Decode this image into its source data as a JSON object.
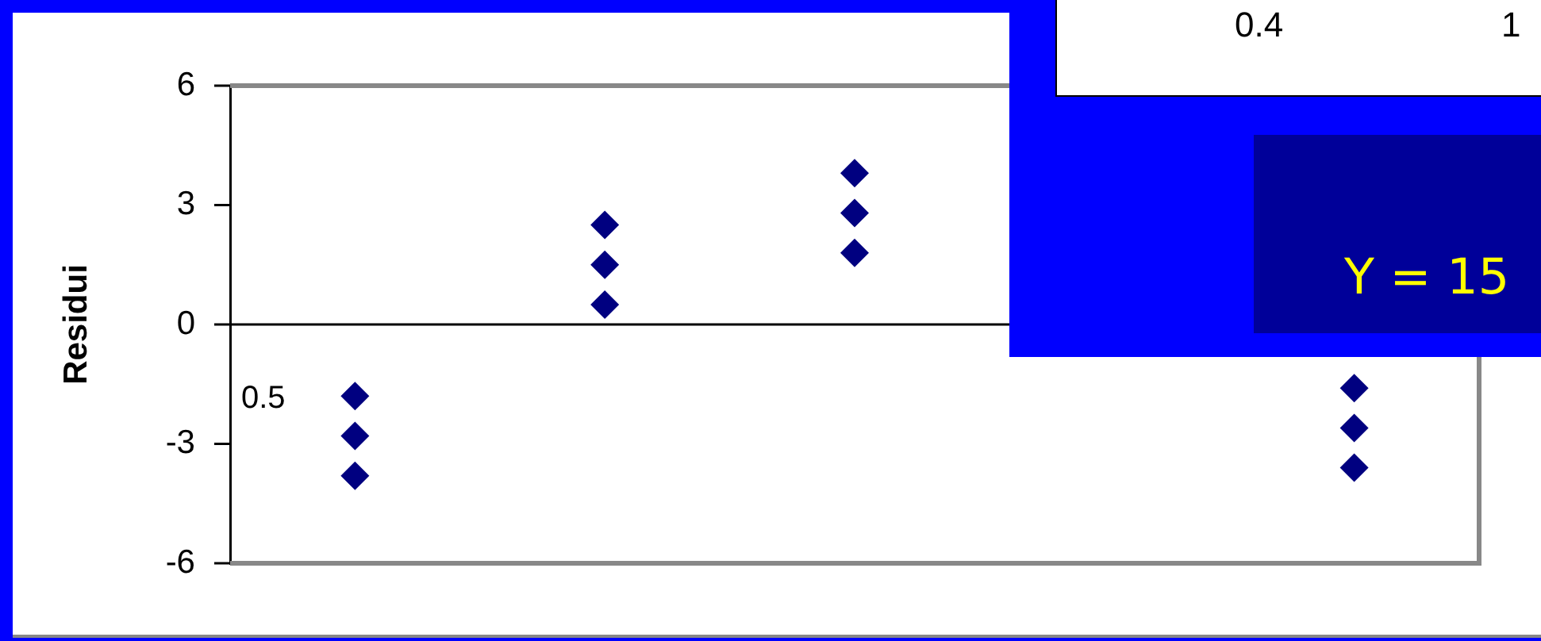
{
  "chart_data": {
    "type": "scatter",
    "ylabel": "Residui",
    "categories": [
      null,
      null,
      null,
      null,
      null
    ],
    "series": [
      {
        "color": "#000080",
        "values": [
          -1.8,
          2.5,
          3.8,
          null,
          -1.6
        ]
      },
      {
        "color": "#000080",
        "values": [
          -2.8,
          1.5,
          2.8,
          null,
          -2.6
        ]
      },
      {
        "color": "#000080",
        "values": [
          -3.8,
          0.5,
          1.8,
          null,
          -3.6
        ]
      }
    ],
    "ref_lines": [
      {
        "axis": "y",
        "value": 0,
        "color": "#000000"
      }
    ],
    "ylim": [
      -6,
      6
    ],
    "yticks": [
      -6,
      -3,
      0,
      3,
      6
    ],
    "tick_labels": "y",
    "grid": false,
    "legend": false,
    "marker": "diamond",
    "annotations": [
      "0.5",
      "0.4",
      "1",
      "Y = 15"
    ]
  }
}
